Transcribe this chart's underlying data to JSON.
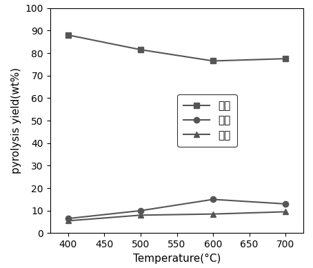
{
  "temperatures": [
    400,
    500,
    600,
    700
  ],
  "solid": [
    88,
    81.5,
    76.5,
    77.5
  ],
  "liquid": [
    6.5,
    10,
    15,
    13
  ],
  "gas": [
    5.5,
    8,
    8.5,
    9.5
  ],
  "xlabel": "Temperature(°C)",
  "ylabel": "pyrolysis yield(wt%)",
  "legend_labels": [
    "固体",
    "液体",
    "气体"
  ],
  "xlim": [
    375,
    725
  ],
  "ylim": [
    0,
    100
  ],
  "xticks": [
    400,
    450,
    500,
    550,
    600,
    650,
    700
  ],
  "yticks": [
    0,
    10,
    20,
    30,
    40,
    50,
    60,
    70,
    80,
    90,
    100
  ],
  "line_color": "#555555",
  "solid_marker": "s",
  "liquid_marker": "o",
  "gas_marker": "^",
  "marker_size": 6,
  "linewidth": 1.5,
  "label_fontsize": 11,
  "tick_fontsize": 10,
  "legend_fontsize": 11
}
